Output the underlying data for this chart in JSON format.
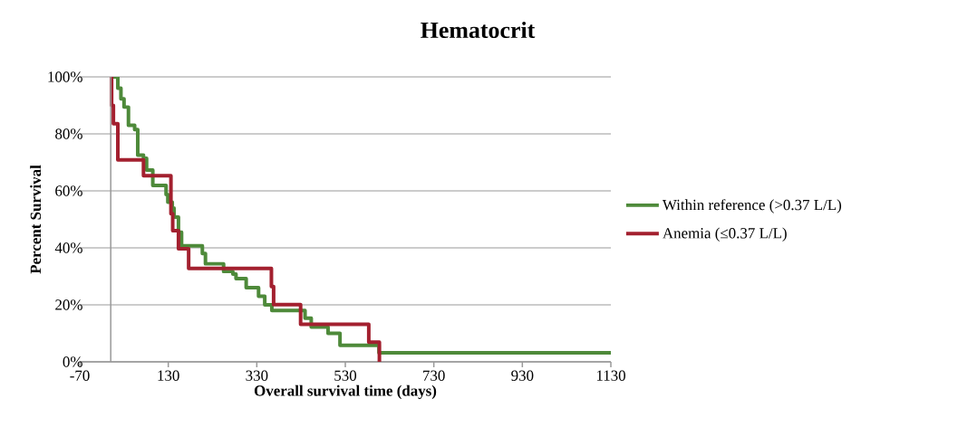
{
  "chart_data": {
    "type": "step",
    "title": "Hematocrit",
    "xlabel": "Overall survival time (days)",
    "ylabel": "Percent Survival",
    "xlim": [
      -70,
      1130
    ],
    "ylim": [
      0,
      100
    ],
    "xticks": [
      -70,
      130,
      330,
      530,
      730,
      930,
      1130
    ],
    "yticks": [
      {
        "value": 0,
        "label": "0%"
      },
      {
        "value": 20,
        "label": "20%"
      },
      {
        "value": 40,
        "label": "40%"
      },
      {
        "value": 60,
        "label": "60%"
      },
      {
        "value": 80,
        "label": "80%"
      },
      {
        "value": 100,
        "label": "100%"
      }
    ],
    "grid": "y",
    "legend": "right",
    "series": [
      {
        "name": "Within reference (>0.37 L/L)",
        "color": "#4e8a3a",
        "x": [
          0,
          16,
          23,
          30,
          40,
          54,
          61,
          74,
          81,
          95,
          125,
          129,
          139,
          143,
          153,
          160,
          207,
          214,
          255,
          276,
          283,
          306,
          334,
          348,
          364,
          439,
          453,
          491,
          518,
          606,
          1130
        ],
        "values": [
          100,
          96,
          92.3,
          89.4,
          83,
          81.5,
          72.5,
          71.4,
          67.3,
          61.9,
          58.7,
          56,
          54,
          50.8,
          45.5,
          40.7,
          38,
          34.4,
          31.7,
          30.8,
          29.2,
          26,
          23,
          20,
          18,
          15.3,
          12.2,
          10,
          5.8,
          3.2,
          3.2
        ]
      },
      {
        "name": "Anemia (≤0.37 L/L)",
        "color": "#a3202f",
        "x": [
          0,
          2,
          6,
          16,
          74,
          136,
          140,
          153,
          176,
          363,
          368,
          429,
          583,
          607
        ],
        "values": [
          100,
          90,
          83.6,
          70.9,
          65.3,
          52,
          46,
          39.7,
          32.8,
          26.4,
          20.1,
          13.2,
          6.9,
          0
        ]
      }
    ]
  }
}
